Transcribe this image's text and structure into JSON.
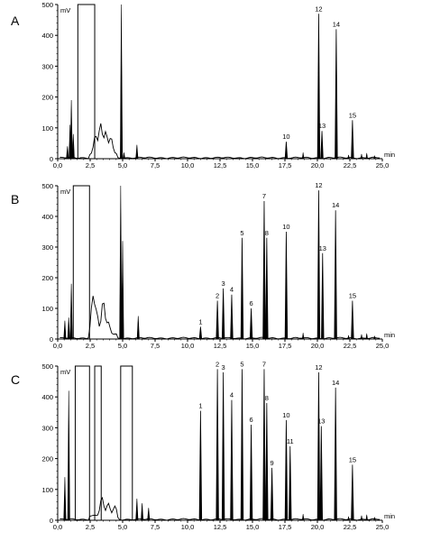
{
  "figure": {
    "panels": [
      "A",
      "B",
      "C"
    ],
    "y_unit": "mV",
    "x_unit": "min",
    "x_tick_labels": [
      "0,0",
      "2,5",
      "5,0",
      "7,5",
      "10,0",
      "12,5",
      "15,0",
      "17,5",
      "20,0",
      "22,5",
      "25,0"
    ],
    "y_tick_labels": [
      "0",
      "100",
      "200",
      "300",
      "400",
      "500"
    ],
    "trace_color": "#000000"
  },
  "chart_data": [
    {
      "type": "line",
      "panel": "A",
      "xlim": [
        0,
        25
      ],
      "ylim": [
        0,
        500
      ],
      "xlabel": "min",
      "ylabel": "mV",
      "peaks": [
        {
          "label": "10",
          "x": 17.6,
          "y": 55
        },
        {
          "label": "12",
          "x": 20.1,
          "y": 470
        },
        {
          "label": "13",
          "x": 20.35,
          "y": 90
        },
        {
          "label": "14",
          "x": 21.45,
          "y": 420
        },
        {
          "label": "15",
          "x": 22.7,
          "y": 125
        }
      ]
    },
    {
      "type": "line",
      "panel": "B",
      "xlim": [
        0,
        25
      ],
      "ylim": [
        0,
        500
      ],
      "xlabel": "min",
      "ylabel": "mV",
      "peaks": [
        {
          "label": "1",
          "x": 11.0,
          "y": 40
        },
        {
          "label": "2",
          "x": 12.3,
          "y": 125
        },
        {
          "label": "3",
          "x": 12.75,
          "y": 165
        },
        {
          "label": "4",
          "x": 13.4,
          "y": 145
        },
        {
          "label": "5",
          "x": 14.2,
          "y": 330
        },
        {
          "label": "6",
          "x": 14.9,
          "y": 100
        },
        {
          "label": "7",
          "x": 15.9,
          "y": 450
        },
        {
          "label": "8",
          "x": 16.1,
          "y": 330
        },
        {
          "label": "10",
          "x": 17.6,
          "y": 350
        },
        {
          "label": "12",
          "x": 20.1,
          "y": 485
        },
        {
          "label": "13",
          "x": 20.4,
          "y": 280
        },
        {
          "label": "14",
          "x": 21.4,
          "y": 420
        },
        {
          "label": "15",
          "x": 22.7,
          "y": 125
        }
      ]
    },
    {
      "type": "line",
      "panel": "C",
      "xlim": [
        0,
        25
      ],
      "ylim": [
        0,
        500
      ],
      "xlabel": "min",
      "ylabel": "mV",
      "peaks": [
        {
          "label": "1",
          "x": 11.0,
          "y": 355
        },
        {
          "label": "2",
          "x": 12.3,
          "y": 490
        },
        {
          "label": "3",
          "x": 12.75,
          "y": 480
        },
        {
          "label": "4",
          "x": 13.4,
          "y": 390
        },
        {
          "label": "5",
          "x": 14.2,
          "y": 490
        },
        {
          "label": "6",
          "x": 14.9,
          "y": 310
        },
        {
          "label": "7",
          "x": 15.9,
          "y": 490
        },
        {
          "label": "8",
          "x": 16.1,
          "y": 380
        },
        {
          "label": "9",
          "x": 16.5,
          "y": 170
        },
        {
          "label": "10",
          "x": 17.6,
          "y": 325
        },
        {
          "label": "11",
          "x": 17.9,
          "y": 240
        },
        {
          "label": "12",
          "x": 20.1,
          "y": 480
        },
        {
          "label": "13",
          "x": 20.3,
          "y": 305
        },
        {
          "label": "14",
          "x": 21.4,
          "y": 430
        },
        {
          "label": "15",
          "x": 22.7,
          "y": 180
        }
      ]
    }
  ]
}
